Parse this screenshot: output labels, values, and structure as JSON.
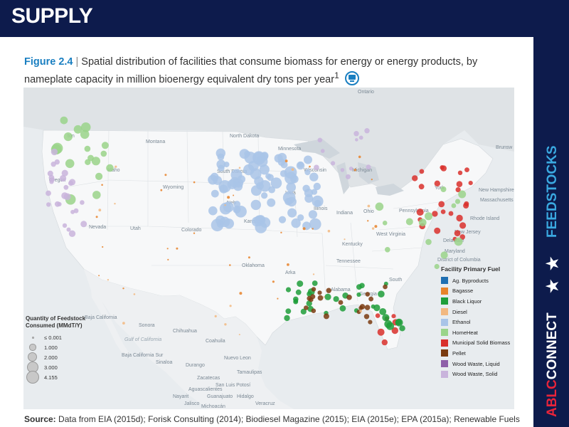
{
  "header": {
    "title": "SUPPLY"
  },
  "sidebar": {
    "feedstocks": "FEEDSTOCKS",
    "stars": "★ ★",
    "ablc_prefix": "ABLC",
    "ablc_suffix": "CONNECT"
  },
  "figure": {
    "label": "Figure 2.4",
    "separator": "|",
    "caption": "Spatial distribution of facilities that consume biomass for energy or energy products, by nameplate capacity in million bioenergy equivalent dry tons per year",
    "footnote_mark": "1",
    "icon": "monitor-icon"
  },
  "map": {
    "labels": {
      "ontario": "Ontario",
      "montana": "Montana",
      "north_dakota": "North Dakota",
      "minnesota": "Minnesota",
      "wisconsin": "Wisconsin",
      "michigan": "Michigan",
      "south_dakota": "South Dakota",
      "wyoming": "Wyoming",
      "idaho": "Idaho",
      "oregon": "Oregon",
      "washington": "ton",
      "nevada": "Nevada",
      "utah": "Utah",
      "colorado": "Colorado",
      "nebraska": "Neb",
      "kansas": "Kansas",
      "iowa": "Iowa",
      "illinois": "Illinois",
      "indiana": "Indiana",
      "ohio": "Ohio",
      "pennsylvania": "Pennsylvania",
      "new_york": "York",
      "kentucky": "Kentucky",
      "west_virginia": "West Virginia",
      "tennessee": "Tennessee",
      "oklahoma": "Oklahoma",
      "arkansas": "Arka",
      "alabama": "Alabama",
      "georgia": "Georgia",
      "south_carolina": "South",
      "new_hampshire": "New Hampshire",
      "massachusetts": "Massachusetts",
      "rhode_island": "Rhode Island",
      "new_jersey": "New Jersey",
      "delaware": "Delaware",
      "maryland": "Maryland",
      "district_of_columbia": "District of Columbia",
      "brunswick": "Brunsw",
      "baja_california": "Baja California",
      "baja_california_sur": "Baja California Sur",
      "sonora": "Sonora",
      "chihuahua": "Chihuahua",
      "coahuila": "Coahuila",
      "nuevo_leon": "Nuevo Leon",
      "tamaulipas": "Tamaulipas",
      "durango": "Durango",
      "sinaloa": "Sinaloa",
      "gulf_of_california": "Gulf of California",
      "aguascalientes": "Aguascalientes",
      "zacatecas": "Zacatecas",
      "san_luis_potosi": "San Luis Potosí",
      "nayarit": "Nayarit",
      "jalisco": "Jalisco",
      "hidalgo": "Hidalgo",
      "guanajuato": "Guanajuato",
      "veracruz": "Veracruz",
      "michoacan": "Michoacán"
    }
  },
  "legend_fuel": {
    "title": "Facility Primary Fuel",
    "items": [
      {
        "label": "Ag. Byproducts",
        "color": "#1f6fb2"
      },
      {
        "label": "Bagasse",
        "color": "#e8832a"
      },
      {
        "label": "Black Liquor",
        "color": "#1e9e3a"
      },
      {
        "label": "Diesel",
        "color": "#f2b880"
      },
      {
        "label": "Ethanol",
        "color": "#a9c4e8"
      },
      {
        "label": "HomeHeat",
        "color": "#9ad48a"
      },
      {
        "label": "Municipal Solid Biomass",
        "color": "#d9302c"
      },
      {
        "label": "Pellet",
        "color": "#7a3b10"
      },
      {
        "label": "Wood Waste, Liquid",
        "color": "#8e5fa8"
      },
      {
        "label": "Wood Waste, Solid",
        "color": "#c9b4dc"
      }
    ]
  },
  "legend_size": {
    "title": "Quantity of Feedstock Consumed (MMdT/Y)",
    "items": [
      {
        "label": "≤ 0.001",
        "value": 0.001
      },
      {
        "label": "1.000",
        "value": 1.0
      },
      {
        "label": "2.000",
        "value": 2.0
      },
      {
        "label": "3.000",
        "value": 3.0
      },
      {
        "label": "4.155",
        "value": 4.155
      }
    ]
  },
  "source": {
    "label": "Source:",
    "text": "Data from EIA (2015d); Forisk Consulting (2014); Biodiesel Magazine (2015); EIA (2015e); EPA (2015a); Renewable Fuels"
  }
}
